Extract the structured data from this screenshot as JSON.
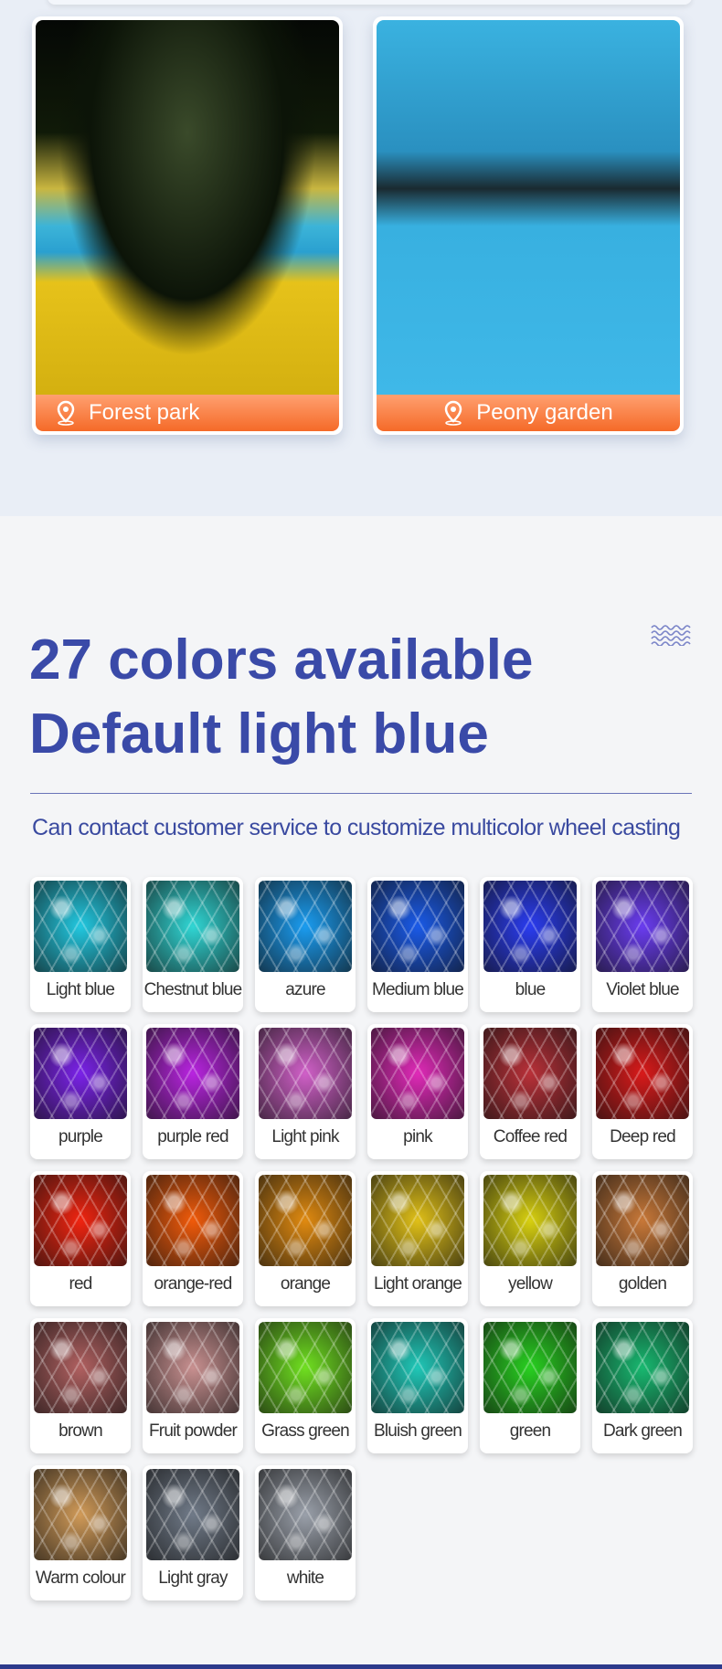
{
  "locations": [
    {
      "label": "Forest park",
      "icon": "location-pin-icon"
    },
    {
      "label": "Peony garden",
      "icon": "location-pin-icon"
    }
  ],
  "section": {
    "title_line1": "27 colors available",
    "title_line2": "Default light blue",
    "subtitle": "Can contact customer service to customize multicolor wheel casting",
    "decor_icon": "wave-icon"
  },
  "colors": [
    {
      "label": "Light blue",
      "hex": "#22c8e0"
    },
    {
      "label": "Chestnut blue",
      "hex": "#30d6d4"
    },
    {
      "label": "azure",
      "hex": "#1a9cf0"
    },
    {
      "label": "Medium blue",
      "hex": "#1a5ae8"
    },
    {
      "label": "blue",
      "hex": "#2a3cf0"
    },
    {
      "label": "Violet blue",
      "hex": "#6a3cf0"
    },
    {
      "label": "purple",
      "hex": "#7a22e8"
    },
    {
      "label": "purple red",
      "hex": "#b824e0"
    },
    {
      "label": "Light pink",
      "hex": "#d060c8"
    },
    {
      "label": "pink",
      "hex": "#e02ab8"
    },
    {
      "label": "Coffee red",
      "hex": "#b83038"
    },
    {
      "label": "Deep red",
      "hex": "#d81a1a"
    },
    {
      "label": "red",
      "hex": "#f02410"
    },
    {
      "label": "orange-red",
      "hex": "#f05a0a"
    },
    {
      "label": "orange",
      "hex": "#e08a10"
    },
    {
      "label": "Light orange",
      "hex": "#e0c018"
    },
    {
      "label": "yellow",
      "hex": "#d8d010"
    },
    {
      "label": "golden",
      "hex": "#c87838"
    },
    {
      "label": "brown",
      "hex": "#b06060"
    },
    {
      "label": "Fruit powder",
      "hex": "#c89090"
    },
    {
      "label": "Grass green",
      "hex": "#70e020"
    },
    {
      "label": "Bluish green",
      "hex": "#20c8b8"
    },
    {
      "label": "green",
      "hex": "#28d020"
    },
    {
      "label": "Dark green",
      "hex": "#18b870"
    },
    {
      "label": "Warm colour",
      "hex": "#d09a58"
    },
    {
      "label": "Light gray",
      "hex": "#707a88"
    },
    {
      "label": "white",
      "hex": "#9aa0aa"
    }
  ]
}
